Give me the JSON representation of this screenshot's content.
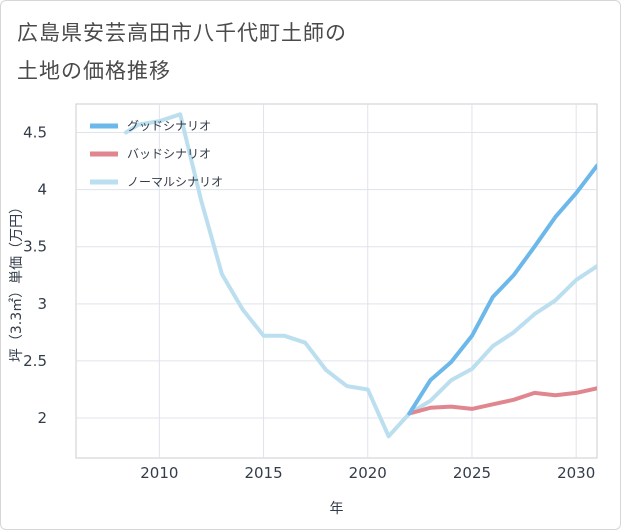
{
  "title_lines": [
    "広島県安芸高田市八千代町土師の",
    "土地の価格推移"
  ],
  "chart_data": {
    "type": "line",
    "xlabel": "年",
    "ylabel": "坪（3.3㎡）単価（万円）",
    "xlim": [
      2006,
      2031
    ],
    "ylim": [
      1.65,
      4.75
    ],
    "x_ticks": [
      2010,
      2015,
      2020,
      2025,
      2030
    ],
    "y_ticks": [
      2,
      2.5,
      3,
      3.5,
      4,
      4.5
    ],
    "y_tick_labels": [
      "2",
      "2.5",
      "3",
      "3.5",
      "4",
      "4.5"
    ],
    "grid": true,
    "legend_position": "top-left",
    "series": [
      {
        "name": "グッドシナリオ",
        "color": "#6cb8ea",
        "x": [
          2022,
          2023,
          2024,
          2025,
          2026,
          2027,
          2028,
          2029,
          2030,
          2031
        ],
        "y": [
          2.04,
          2.33,
          2.49,
          2.72,
          3.06,
          3.25,
          3.5,
          3.76,
          3.97,
          4.21
        ]
      },
      {
        "name": "バッドシナリオ",
        "color": "#e0868f",
        "x": [
          2022,
          2023,
          2024,
          2025,
          2026,
          2027,
          2028,
          2029,
          2030,
          2031
        ],
        "y": [
          2.04,
          2.09,
          2.1,
          2.08,
          2.12,
          2.16,
          2.22,
          2.2,
          2.22,
          2.26
        ]
      },
      {
        "name": "ノーマルシナリオ",
        "color": "#bcdff0",
        "x": [
          2008.4,
          2009,
          2010,
          2011,
          2012,
          2013,
          2014,
          2015,
          2016,
          2017,
          2018,
          2019,
          2020,
          2021,
          2022,
          2023,
          2024,
          2025,
          2026,
          2027,
          2028,
          2029,
          2030,
          2031
        ],
        "y": [
          4.5,
          4.57,
          4.6,
          4.66,
          3.91,
          3.26,
          2.95,
          2.72,
          2.72,
          2.66,
          2.42,
          2.28,
          2.25,
          1.84,
          2.04,
          2.15,
          2.33,
          2.43,
          2.63,
          2.75,
          2.91,
          3.03,
          3.21,
          3.33
        ]
      }
    ]
  }
}
